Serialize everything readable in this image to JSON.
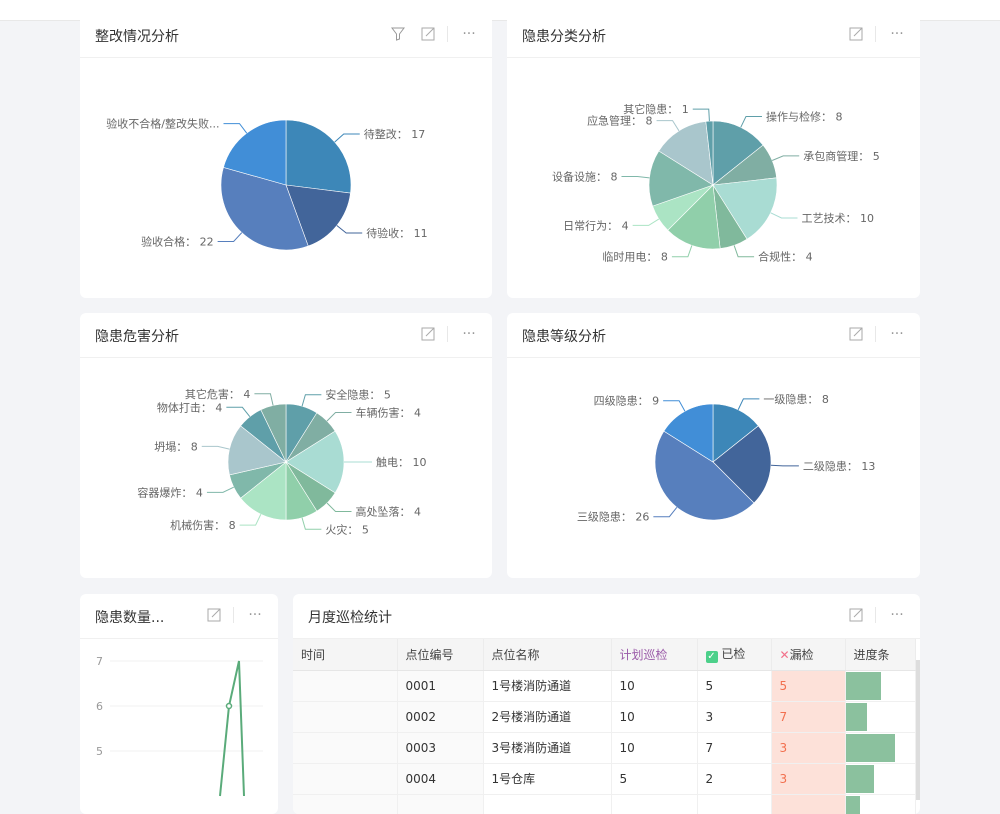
{
  "cards": {
    "c1": {
      "title": "整改情况分析"
    },
    "c2": {
      "title": "隐患分类分析"
    },
    "c3": {
      "title": "隐患危害分析"
    },
    "c4": {
      "title": "隐患等级分析"
    },
    "c5": {
      "title": "隐患数量..."
    },
    "c6": {
      "title": "月度巡检统计"
    }
  },
  "chart_data": [
    {
      "type": "pie",
      "id": "pie1",
      "slices": [
        {
          "label": "待整改",
          "value": 17,
          "color": "#3d87b8"
        },
        {
          "label": "待验收",
          "value": 11,
          "color": "#42659a"
        },
        {
          "label": "验收合格",
          "value": 22,
          "color": "#577fbd"
        },
        {
          "label": "验收不合格/整改失败...",
          "value": 13,
          "color": "#418ed7",
          "hide_value": true
        }
      ]
    },
    {
      "type": "pie",
      "id": "pie2",
      "slices": [
        {
          "label": "操作与检修",
          "value": 8,
          "color": "#5f9fa9"
        },
        {
          "label": "承包商管理",
          "value": 5,
          "color": "#80aea3"
        },
        {
          "label": "工艺技术",
          "value": 10,
          "color": "#a9dcd3"
        },
        {
          "label": "合规性",
          "value": 4,
          "color": "#80b99c"
        },
        {
          "label": "临时用电",
          "value": 8,
          "color": "#90cfaa"
        },
        {
          "label": "日常行为",
          "value": 4,
          "color": "#abe4c4"
        },
        {
          "label": "设备设施",
          "value": 8,
          "color": "#80b8aa"
        },
        {
          "label": "应急管理",
          "value": 8,
          "color": "#a9c6cc"
        },
        {
          "label": "其它隐患",
          "value": 1,
          "color": "#5f9fa9"
        }
      ]
    },
    {
      "type": "pie",
      "id": "pie3",
      "slices": [
        {
          "label": "安全隐患",
          "value": 5,
          "color": "#5f9fa9"
        },
        {
          "label": "车辆伤害",
          "value": 4,
          "color": "#80aea3"
        },
        {
          "label": "触电",
          "value": 10,
          "color": "#a9dcd3"
        },
        {
          "label": "高处坠落",
          "value": 4,
          "color": "#80b99c"
        },
        {
          "label": "火灾",
          "value": 5,
          "color": "#90cfaa"
        },
        {
          "label": "机械伤害",
          "value": 8,
          "color": "#abe4c4"
        },
        {
          "label": "容器爆炸",
          "value": 4,
          "color": "#80b8aa"
        },
        {
          "label": "坍塌",
          "value": 8,
          "color": "#a9c6cc"
        },
        {
          "label": "物体打击",
          "value": 4,
          "color": "#5f9fa9"
        },
        {
          "label": "其它危害",
          "value": 4,
          "color": "#80aea3"
        }
      ]
    },
    {
      "type": "pie",
      "id": "pie4",
      "slices": [
        {
          "label": "一级隐患",
          "value": 8,
          "color": "#3d87b8"
        },
        {
          "label": "二级隐患",
          "value": 13,
          "color": "#42659a"
        },
        {
          "label": "三级隐患",
          "value": 26,
          "color": "#577fbd"
        },
        {
          "label": "四级隐患",
          "value": 9,
          "color": "#418ed7"
        }
      ]
    },
    {
      "type": "line",
      "id": "line1",
      "y_ticks": [
        "7",
        "6",
        "5"
      ],
      "values": [
        4,
        6,
        7,
        4
      ],
      "color": "#5aab7a",
      "grid": true
    }
  ],
  "table": {
    "headers": [
      "时间",
      "点位编号",
      "点位名称",
      "计划巡检",
      "已检",
      "漏检",
      "进度条"
    ],
    "rows": [
      {
        "code": "0001",
        "name": "1号楼消防通道",
        "plan": "10",
        "done": "5",
        "miss": "5",
        "progress": 0.5
      },
      {
        "code": "0002",
        "name": "2号楼消防通道",
        "plan": "10",
        "done": "3",
        "miss": "7",
        "progress": 0.3
      },
      {
        "code": "0003",
        "name": "3号楼消防通道",
        "plan": "10",
        "done": "7",
        "miss": "3",
        "progress": 0.7
      },
      {
        "code": "0004",
        "name": "1号仓库",
        "plan": "5",
        "done": "2",
        "miss": "3",
        "progress": 0.4
      },
      {
        "code": "",
        "name": "",
        "plan": "",
        "done": "",
        "miss": "",
        "progress": 0.2
      }
    ]
  }
}
